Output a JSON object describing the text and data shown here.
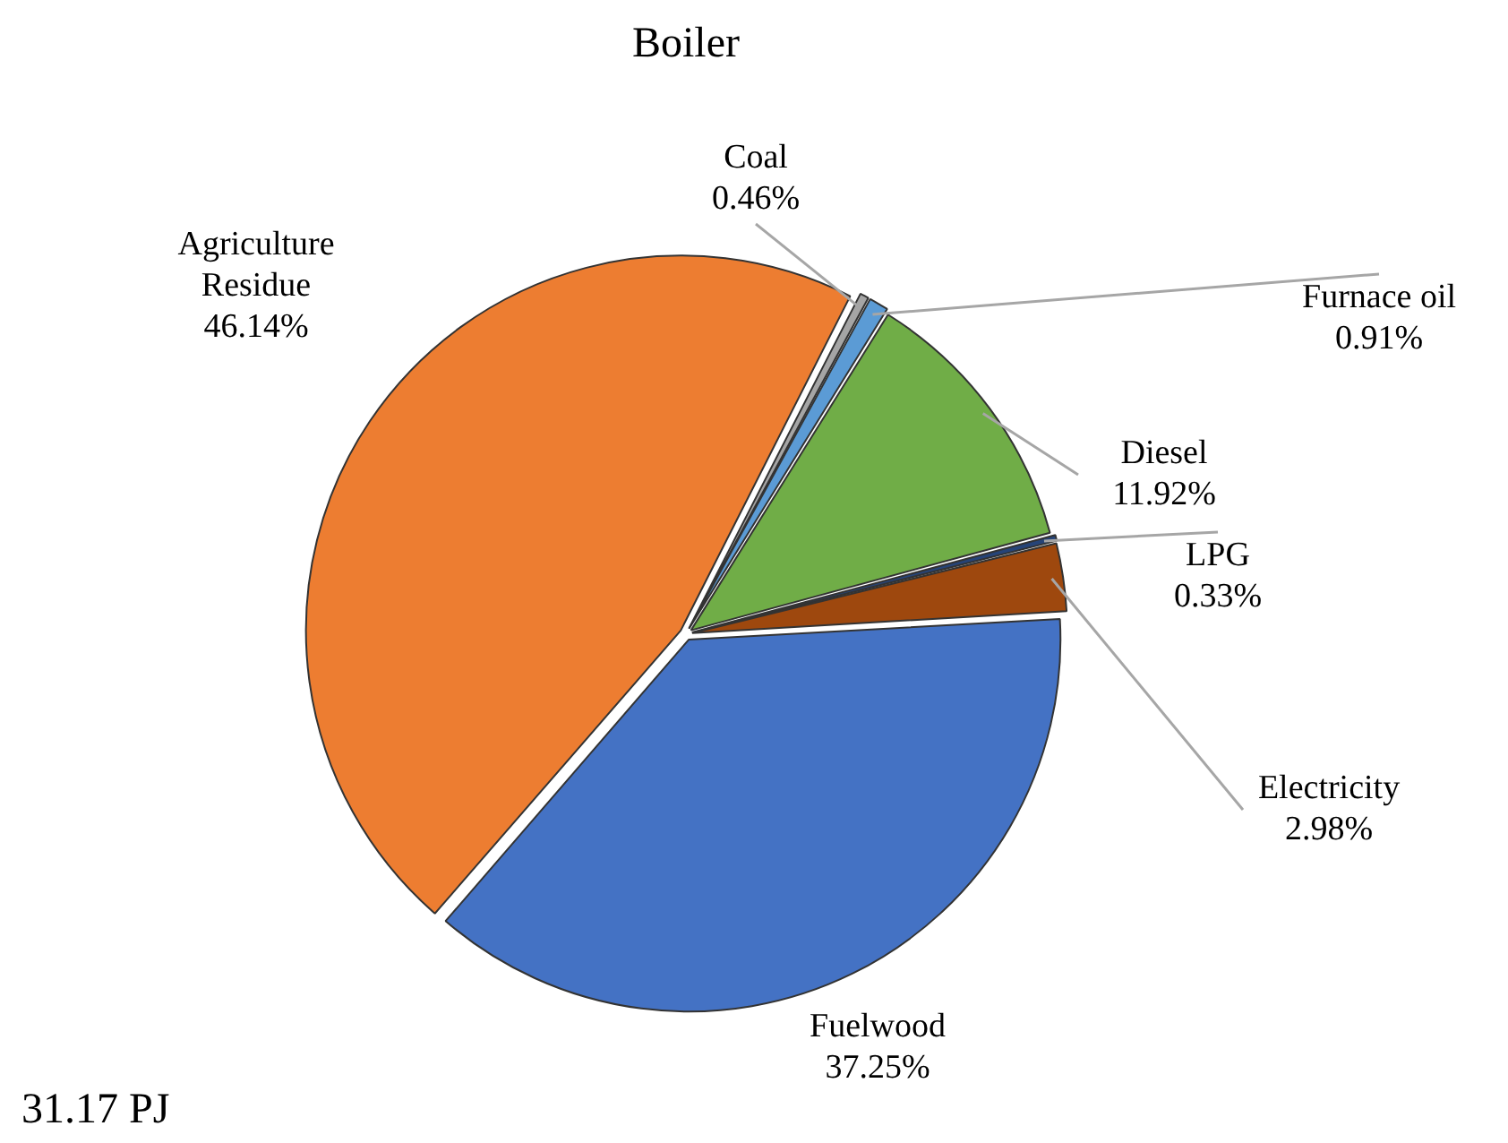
{
  "chart_data": {
    "type": "pie",
    "title": "Boiler",
    "categories": [
      "Coal",
      "Furnace oil",
      "Diesel",
      "LPG",
      "Electricity",
      "Fuelwood",
      "Agriculture Residue"
    ],
    "values": [
      0.46,
      0.91,
      11.92,
      0.33,
      2.98,
      37.25,
      46.14
    ],
    "value_labels": [
      "0.46%",
      "0.91%",
      "11.92%",
      "0.33%",
      "2.98%",
      "37.25%",
      "46.14%"
    ],
    "colors": [
      "#a5a5a5",
      "#5b9bd5",
      "#70ad47",
      "#264478",
      "#9e480e",
      "#4472c4",
      "#ed7d31"
    ],
    "annotations": [
      "31.17 PJ"
    ],
    "legend": false
  }
}
